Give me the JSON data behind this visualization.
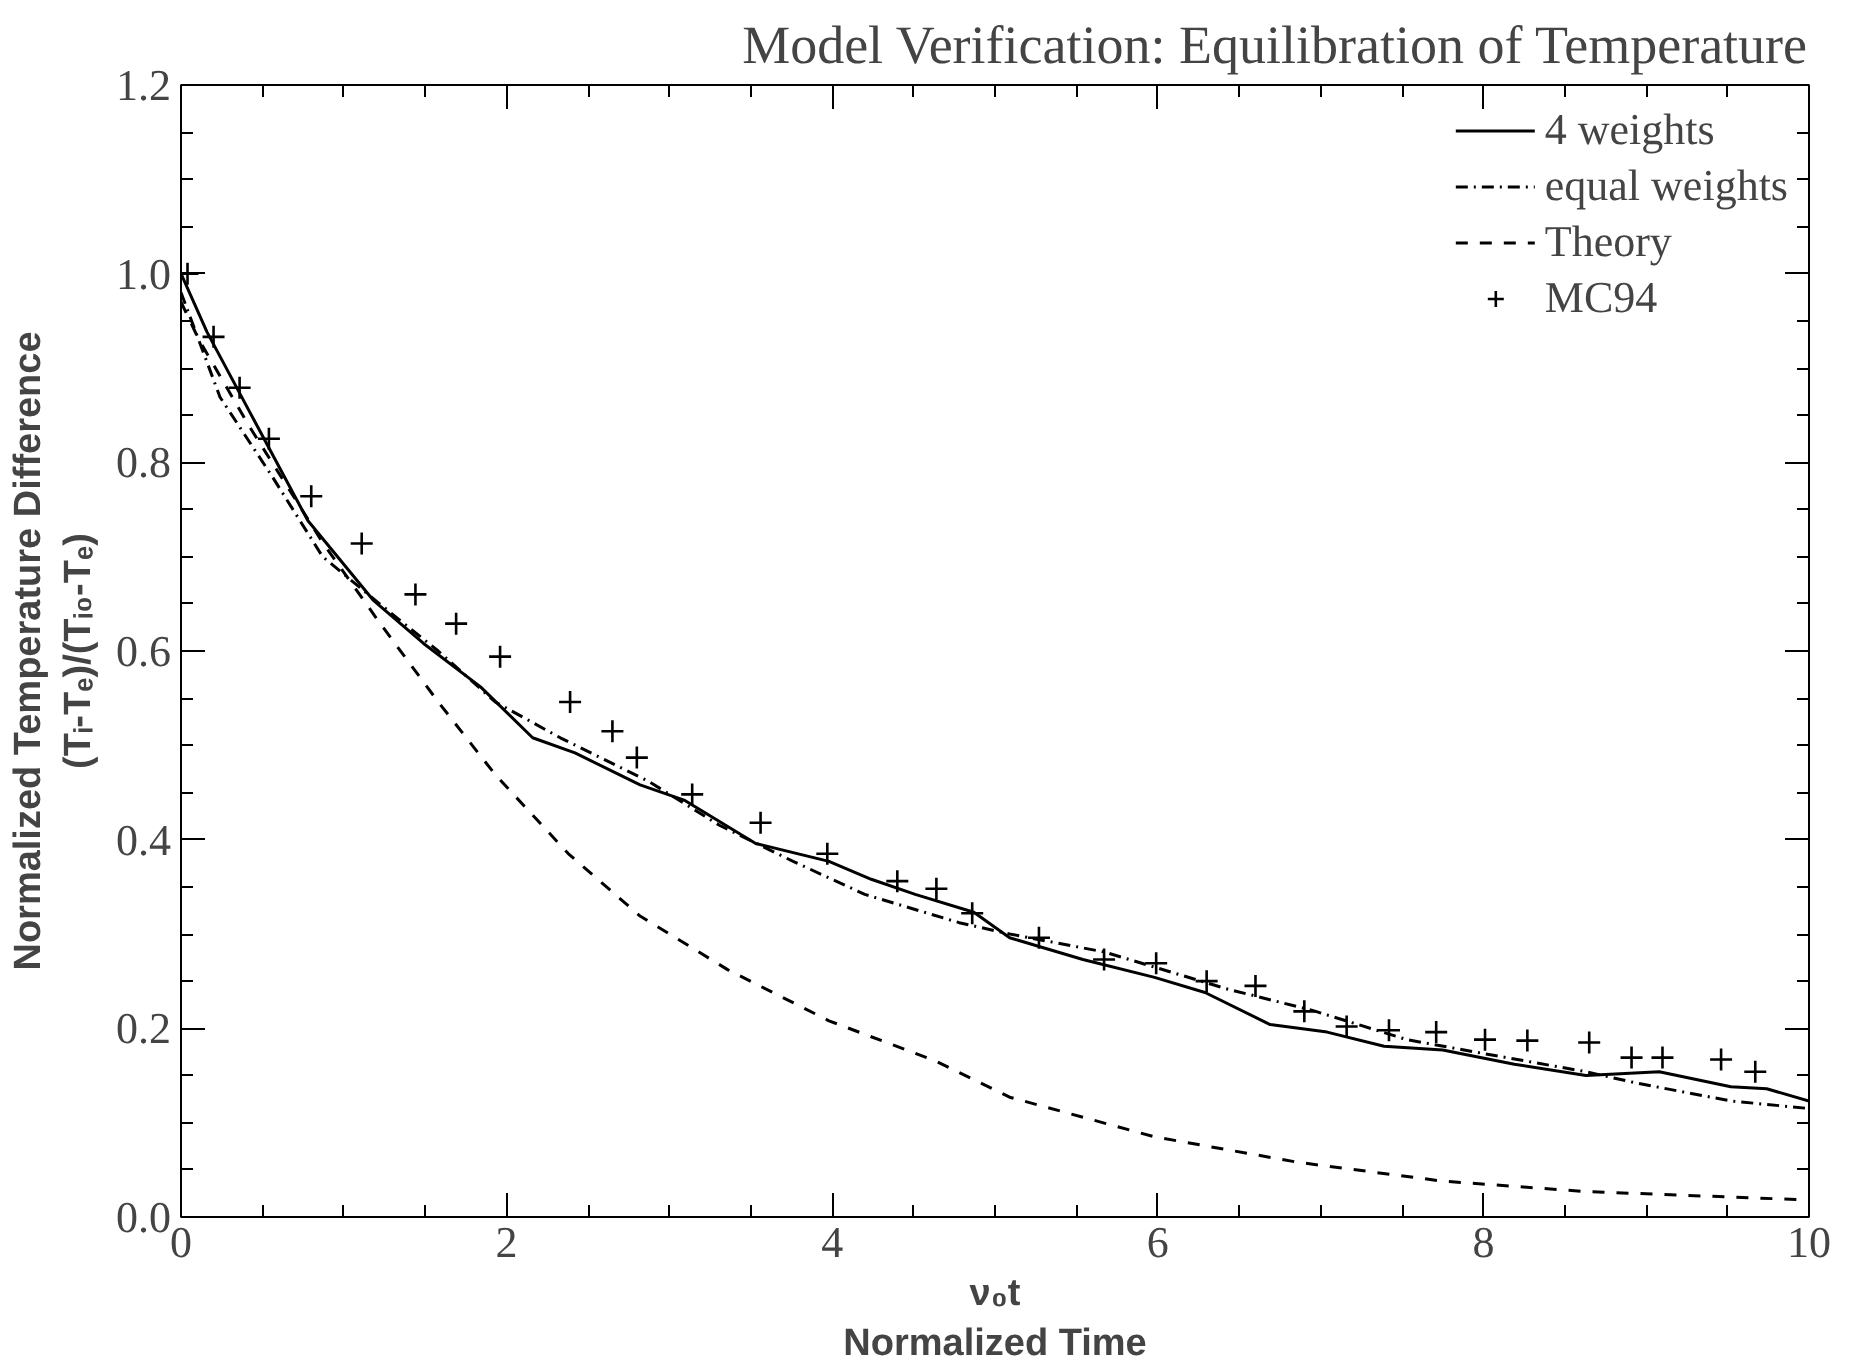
{
  "chart_data": {
    "type": "line",
    "title": "Model Verification: Equilibration of Temperature",
    "xlabel": "ν₀t\nNormalized Time",
    "ylabel": "Normalized Temperature Difference\n(Tᵢ-Tₑ)/(Tᵢ₀-Tₑ)",
    "xlim": [
      0,
      10
    ],
    "ylim": [
      0,
      1.2
    ],
    "xticks": [
      0,
      2,
      4,
      6,
      8,
      10
    ],
    "yticks": [
      {
        "value": 0,
        "label": "0.0"
      },
      0.2,
      0.4,
      0.6,
      0.8,
      {
        "value": 1,
        "label": "1.0"
      },
      1.2
    ],
    "grid": false,
    "legend": "top right",
    "series": [
      {
        "name": "4 weights",
        "color": "#000000",
        "line_style": "solid",
        "x": [
          0,
          0.16,
          0.42,
          0.78,
          1.18,
          1.49,
          1.84,
          2.16,
          2.42,
          2.82,
          3.09,
          3.53,
          3.98,
          4.24,
          4.51,
          4.87,
          5.09,
          5.54,
          5.98,
          6.29,
          6.69,
          7.04,
          7.39,
          7.75,
          8.19,
          8.63,
          9.08,
          9.52,
          9.74,
          10
        ],
        "values": [
          1.0,
          0.938,
          0.854,
          0.738,
          0.654,
          0.608,
          0.562,
          0.508,
          0.492,
          0.458,
          0.442,
          0.396,
          0.377,
          0.358,
          0.342,
          0.323,
          0.296,
          0.273,
          0.254,
          0.238,
          0.204,
          0.196,
          0.181,
          0.177,
          0.162,
          0.15,
          0.154,
          0.138,
          0.136,
          0.123
        ]
      },
      {
        "name": "equal weights",
        "color": "#000000",
        "line_style": "dashdot",
        "x": [
          0,
          0.24,
          0.56,
          0.87,
          1.22,
          1.58,
          1.93,
          2.33,
          2.87,
          3.31,
          3.76,
          4.2,
          4.78,
          5.09,
          5.67,
          6.42,
          6.95,
          7.53,
          8.01,
          8.63,
          8.94,
          9.52,
          10
        ],
        "values": [
          0.98,
          0.869,
          0.785,
          0.7,
          0.65,
          0.6,
          0.546,
          0.508,
          0.462,
          0.415,
          0.377,
          0.342,
          0.312,
          0.3,
          0.281,
          0.242,
          0.219,
          0.188,
          0.173,
          0.154,
          0.142,
          0.123,
          0.115
        ]
      },
      {
        "name": "Theory",
        "color": "#000000",
        "line_style": "dashed",
        "x": [
          0,
          0.11,
          0.42,
          0.87,
          1.22,
          1.58,
          1.93,
          2.38,
          2.82,
          3.36,
          3.98,
          4.64,
          5.09,
          5.98,
          6.86,
          7.75,
          8.63,
          10
        ],
        "values": [
          0.97,
          0.93,
          0.838,
          0.715,
          0.63,
          0.546,
          0.469,
          0.385,
          0.319,
          0.262,
          0.208,
          0.165,
          0.127,
          0.085,
          0.058,
          0.038,
          0.027,
          0.018
        ]
      },
      {
        "name": "MC94",
        "type": "scatter",
        "marker": "cross",
        "color": "#000000",
        "x": [
          0.04,
          0.2,
          0.36,
          0.54,
          0.8,
          1.11,
          1.44,
          1.69,
          1.96,
          2.39,
          2.65,
          2.8,
          3.14,
          3.56,
          3.97,
          4.4,
          4.64,
          4.86,
          5.27,
          5.67,
          5.99,
          6.3,
          6.6,
          6.9,
          7.16,
          7.42,
          7.71,
          8.01,
          8.27,
          8.65,
          8.91,
          9.1,
          9.46,
          9.67
        ],
        "values": [
          1.0,
          0.933,
          0.879,
          0.825,
          0.764,
          0.714,
          0.66,
          0.629,
          0.594,
          0.546,
          0.515,
          0.487,
          0.448,
          0.418,
          0.385,
          0.356,
          0.348,
          0.322,
          0.296,
          0.273,
          0.269,
          0.25,
          0.245,
          0.218,
          0.202,
          0.198,
          0.196,
          0.188,
          0.187,
          0.185,
          0.169,
          0.169,
          0.167,
          0.154
        ]
      }
    ]
  }
}
